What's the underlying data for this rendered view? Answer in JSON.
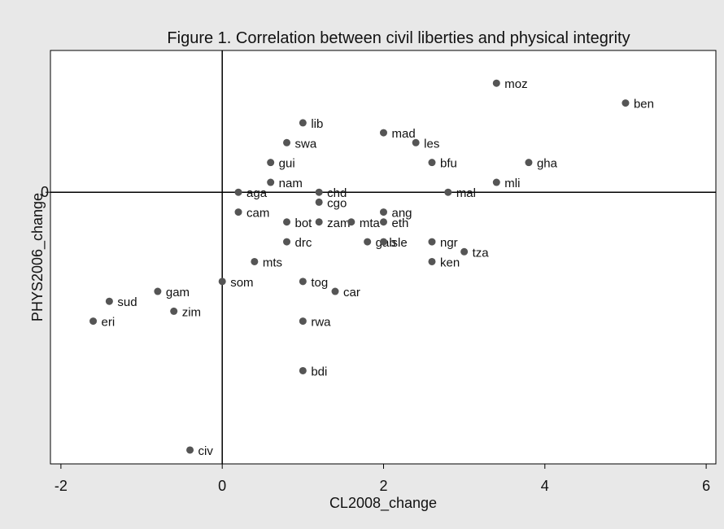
{
  "chart_data": {
    "type": "scatter",
    "title": "Figure 1.  Correlation between civil liberties and physical integrity",
    "x_label": "CL2008_change",
    "y_label": "PHYS2006_change",
    "xlim": [
      -2.13,
      6.12
    ],
    "ylim": [
      -27.4,
      14.3
    ],
    "xticks": [
      -2,
      0,
      2,
      4,
      6
    ],
    "yticks": [
      0
    ],
    "reference_lines": {
      "x": 0,
      "y": 0
    },
    "color": "#555555",
    "labels": [
      "moz",
      "ben",
      "lib",
      "mad",
      "swa",
      "les",
      "gui",
      "bfu",
      "gha",
      "nam",
      "mli",
      "aga",
      "chd",
      "mal",
      "cgo",
      "cam",
      "ang",
      "bot",
      "zam",
      "mta",
      "eth",
      "drc",
      "gab",
      "sle",
      "ngr",
      "tza",
      "mts",
      "ken",
      "som",
      "tog",
      "car",
      "gam",
      "sud",
      "zim",
      "eri",
      "rwa",
      "bdi",
      "civ"
    ],
    "x": [
      3.4,
      5,
      1,
      2,
      0.8,
      2.4,
      0.6,
      2.6,
      3.8,
      0.6,
      3.4,
      0.2,
      1.2,
      2.8,
      1.2,
      0.2,
      2,
      0.8,
      1.2,
      1.6,
      2,
      0.8,
      1.8,
      2,
      2.6,
      3,
      0.4,
      2.6,
      0,
      1,
      1.4,
      -0.8,
      -1.4,
      -0.6,
      -1.6,
      1,
      1,
      -0.4
    ],
    "values": [
      11,
      9,
      7,
      6,
      5,
      5,
      3,
      3,
      3,
      1,
      1,
      0,
      0,
      0,
      -1,
      -2,
      -2,
      -3,
      -3,
      -3,
      -3,
      -5,
      -5,
      -5,
      -5,
      -6,
      -7,
      -7,
      -9,
      -9,
      -10,
      -10,
      -11,
      -12,
      -13,
      -13,
      -18,
      -26
    ]
  }
}
